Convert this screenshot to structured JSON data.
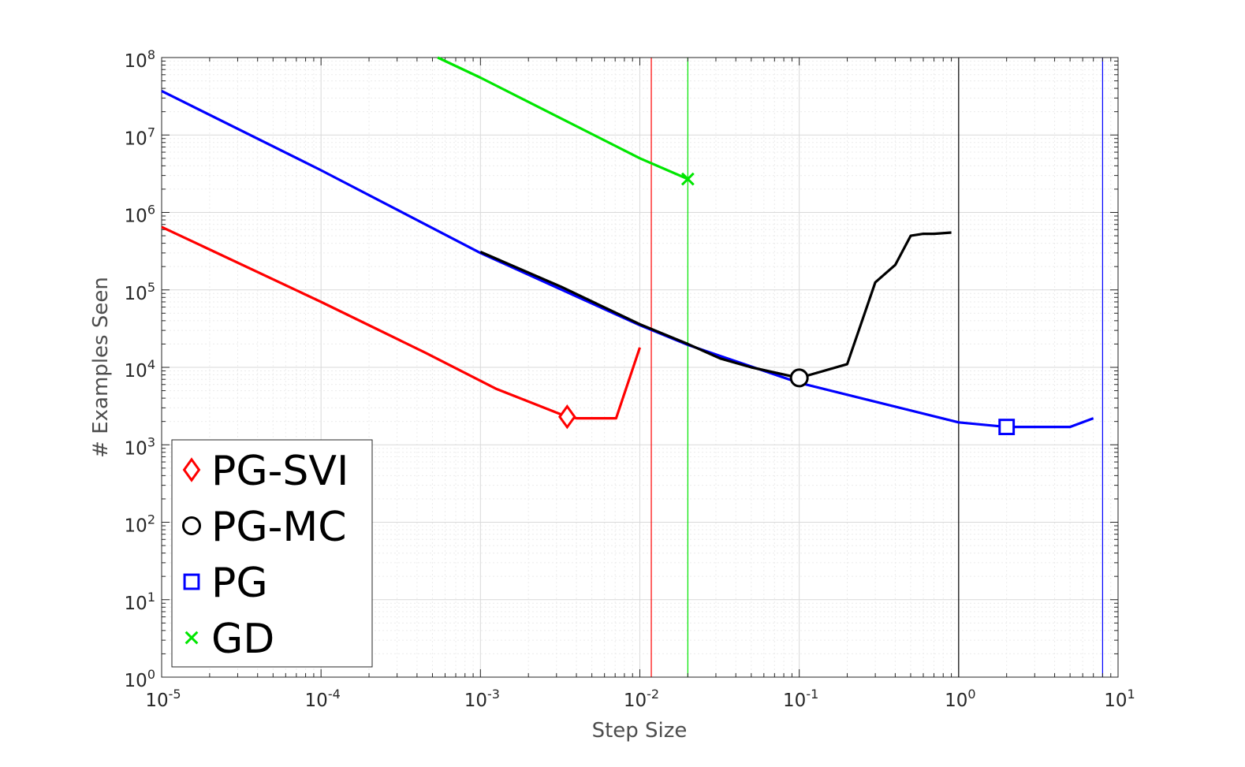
{
  "chart_data": {
    "type": "line",
    "title": "",
    "xlabel": "Step Size",
    "ylabel": "# Examples Seen",
    "xscale": "log",
    "yscale": "log",
    "xlim": [
      1e-05,
      10
    ],
    "ylim": [
      1,
      100000000
    ],
    "xticks": [
      {
        "base": "10",
        "exp": "-5",
        "value": 1e-05
      },
      {
        "base": "10",
        "exp": "-4",
        "value": 0.0001
      },
      {
        "base": "10",
        "exp": "-3",
        "value": 0.001
      },
      {
        "base": "10",
        "exp": "-2",
        "value": 0.01
      },
      {
        "base": "10",
        "exp": "-1",
        "value": 0.1
      },
      {
        "base": "10",
        "exp": "0",
        "value": 1
      },
      {
        "base": "10",
        "exp": "1",
        "value": 10
      }
    ],
    "yticks": [
      {
        "base": "10",
        "exp": "0",
        "value": 1
      },
      {
        "base": "10",
        "exp": "1",
        "value": 10
      },
      {
        "base": "10",
        "exp": "2",
        "value": 100
      },
      {
        "base": "10",
        "exp": "3",
        "value": 1000
      },
      {
        "base": "10",
        "exp": "4",
        "value": 10000
      },
      {
        "base": "10",
        "exp": "5",
        "value": 100000
      },
      {
        "base": "10",
        "exp": "6",
        "value": 1000000
      },
      {
        "base": "10",
        "exp": "7",
        "value": 10000000
      },
      {
        "base": "10",
        "exp": "8",
        "value": 100000000
      }
    ],
    "grid": true,
    "legend_position": "bottom-left",
    "series": [
      {
        "name": "PG-SVI",
        "color": "#ff0000",
        "marker": "diamond",
        "points": [
          [
            1e-05,
            650000
          ],
          [
            0.0001,
            70000
          ],
          [
            0.00045,
            15500
          ],
          [
            0.00125,
            5300
          ],
          [
            0.0035,
            2300
          ],
          [
            0.004,
            2200
          ],
          [
            0.0071,
            2200
          ],
          [
            0.01,
            18000
          ]
        ],
        "best": [
          0.0035,
          2300
        ],
        "vline": 0.0118
      },
      {
        "name": "PG-MC",
        "color": "#000000",
        "marker": "circle",
        "points": [
          [
            0.001,
            310000
          ],
          [
            0.0032,
            110000
          ],
          [
            0.01,
            36000
          ],
          [
            0.02,
            20000
          ],
          [
            0.032,
            13000
          ],
          [
            0.05,
            10000
          ],
          [
            0.1,
            7300
          ],
          [
            0.2,
            11000
          ],
          [
            0.3,
            125000
          ],
          [
            0.4,
            210000
          ],
          [
            0.5,
            500000
          ],
          [
            0.6,
            530000
          ],
          [
            0.7,
            530000
          ],
          [
            0.9,
            550000
          ]
        ],
        "best": [
          0.1,
          7300
        ],
        "vline": 1
      },
      {
        "name": "PG",
        "color": "#0000ff",
        "marker": "square",
        "points": [
          [
            1e-05,
            37000000
          ],
          [
            0.0001,
            3500000
          ],
          [
            0.001,
            300000
          ],
          [
            0.01,
            35000
          ],
          [
            0.02,
            19500
          ],
          [
            0.032,
            14000
          ],
          [
            0.1,
            6300
          ],
          [
            1,
            1950
          ],
          [
            2,
            1700
          ],
          [
            5,
            1700
          ],
          [
            7,
            2200
          ]
        ],
        "best": [
          2,
          1700
        ],
        "vline": 8
      },
      {
        "name": "GD",
        "color": "#00e600",
        "marker": "x",
        "points": [
          [
            0.00054,
            100000000
          ],
          [
            0.001,
            55000000
          ],
          [
            0.01,
            5000000
          ],
          [
            0.02,
            2700000
          ]
        ],
        "best": [
          0.02,
          2700000
        ],
        "vline": 0.02
      }
    ]
  }
}
